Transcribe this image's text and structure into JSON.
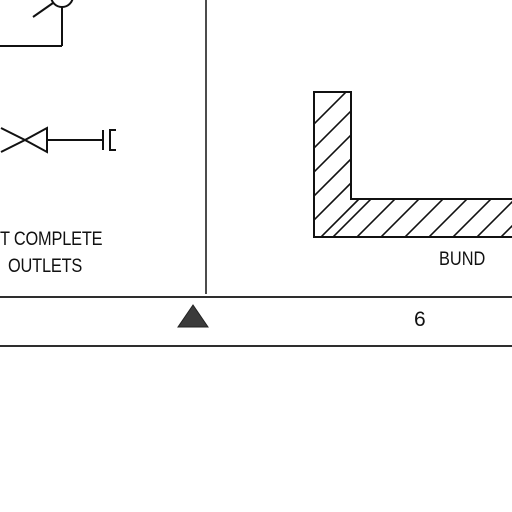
{
  "valve_symbol": {
    "caption_lines": [
      "T COMPLETE",
      "OUTLETS"
    ]
  },
  "bund_symbol": {
    "label": "BUND"
  },
  "footer": {
    "page_number": "6",
    "marker_icon": "triangle-marker-icon"
  },
  "colors": {
    "line": "#111111",
    "marker_fill": "#3b3b3b",
    "background": "#ffffff"
  }
}
